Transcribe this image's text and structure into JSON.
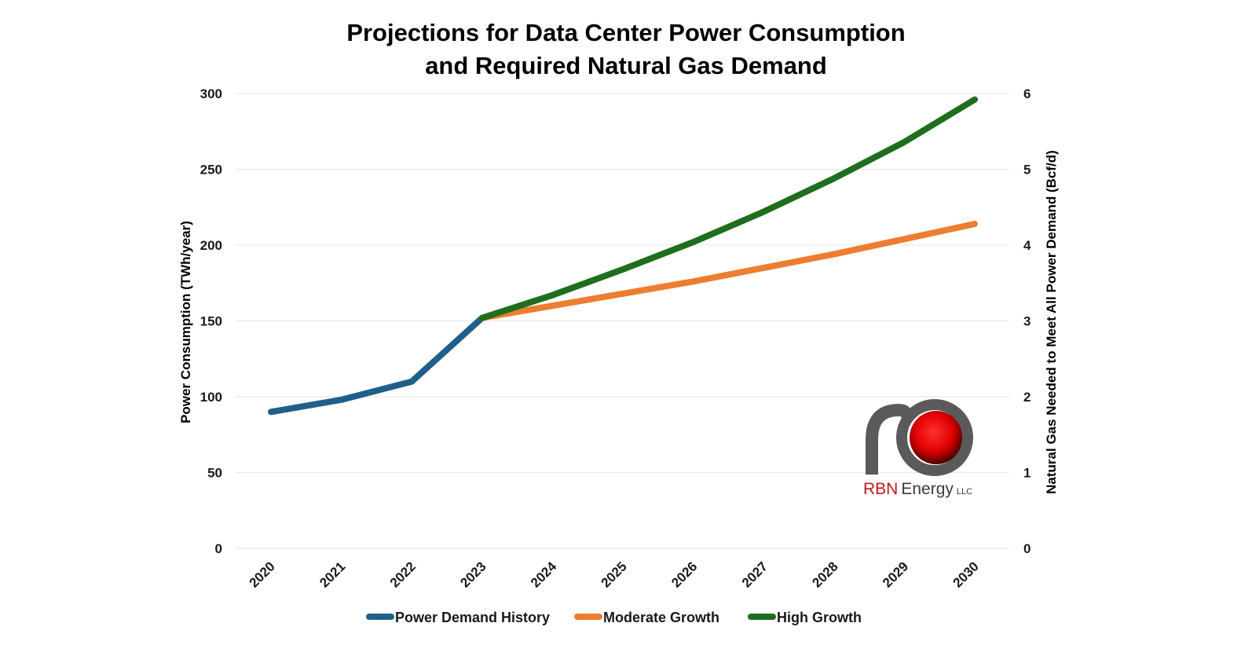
{
  "chart_data": {
    "type": "line",
    "title": [
      "Projections for Data Center Power Consumption",
      "and Required Natural Gas Demand"
    ],
    "categories": [
      "2020",
      "2021",
      "2022",
      "2023",
      "2024",
      "2025",
      "2026",
      "2027",
      "2028",
      "2029",
      "2030"
    ],
    "ylabel": "Power Consumption (TWh/year)",
    "y2label": "Natural Gas Needed to Meet All Power Demand (Bcf/d)",
    "ylim": [
      0,
      300
    ],
    "y2lim": [
      0,
      6
    ],
    "yticks": [
      "0",
      "50",
      "100",
      "150",
      "200",
      "250",
      "300"
    ],
    "y2ticks": [
      "0",
      "1",
      "2",
      "3",
      "4",
      "5",
      "6"
    ],
    "grid": true,
    "legend_position": "bottom-center",
    "series": [
      {
        "name": "Power Demand History",
        "color": "#1f5f8b",
        "values": [
          90,
          98,
          110,
          152,
          null,
          null,
          null,
          null,
          null,
          null,
          null
        ]
      },
      {
        "name": "Moderate Growth",
        "color": "#ed7d31",
        "values": [
          null,
          null,
          null,
          152,
          160,
          168,
          176,
          185,
          194,
          204,
          214
        ]
      },
      {
        "name": "High Growth",
        "color": "#1e6e1e",
        "values": [
          null,
          null,
          null,
          152,
          167,
          184,
          202,
          222,
          244,
          268,
          296
        ]
      }
    ]
  },
  "logo": {
    "brand_red": "RBN",
    "brand_gray": "Energy",
    "suffix": "LLC",
    "pipe_color": "#5a5a5a",
    "ball_color": "#e00000"
  }
}
